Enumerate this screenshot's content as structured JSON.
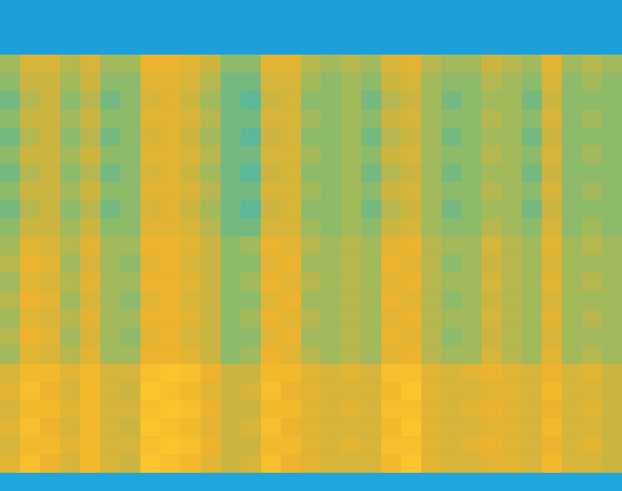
{
  "chart_data": {
    "type": "heatmap",
    "tick_labels": false,
    "color_range": [
      0,
      10
    ],
    "values": [
      [
        1,
        1,
        1,
        1,
        1,
        1,
        1,
        1,
        1,
        1,
        1,
        1,
        1,
        1,
        1,
        1,
        1,
        1,
        1,
        1,
        1,
        1,
        1,
        1,
        1,
        1,
        1,
        1,
        1,
        1,
        1
      ],
      [
        1,
        1,
        1,
        1,
        1,
        1,
        1,
        1,
        1,
        1,
        1,
        1,
        1,
        1,
        1,
        1,
        1,
        1,
        1,
        1,
        1,
        1,
        1,
        1,
        1,
        1,
        1,
        1,
        1,
        1,
        1
      ],
      [
        1,
        1,
        1,
        1,
        1,
        1,
        1,
        1,
        1,
        1,
        1,
        1,
        1,
        1,
        1,
        1,
        1,
        1,
        1,
        1,
        1,
        1,
        1,
        1,
        1,
        1,
        1,
        1,
        1,
        1,
        1
      ],
      [
        5,
        6.5,
        6.5,
        5.5,
        6.5,
        5,
        5,
        7.5,
        7.5,
        7,
        6,
        4.5,
        4.5,
        7,
        7,
        5.5,
        5,
        5.5,
        5,
        6.5,
        7,
        5.5,
        5,
        5,
        6,
        5.5,
        5,
        7,
        5,
        5.5,
        5
      ],
      [
        4.5,
        6,
        6,
        5,
        6,
        4.5,
        4.5,
        7,
        7,
        6.5,
        5.5,
        4,
        4,
        6.5,
        6.5,
        5,
        4.5,
        5,
        4.5,
        6,
        6.5,
        5,
        4.5,
        4.5,
        5.5,
        5,
        4.5,
        6.5,
        4.5,
        5,
        4.5
      ],
      [
        4,
        5.5,
        6,
        4.5,
        5.5,
        4,
        4.5,
        6.5,
        7,
        6,
        5,
        4,
        3.5,
        6,
        6.5,
        4.5,
        4.5,
        5,
        4,
        5.5,
        6,
        5,
        4,
        4.5,
        5,
        5,
        4,
        6,
        4.5,
        4.5,
        4.5
      ],
      [
        4.5,
        6,
        6,
        5,
        6,
        4.5,
        4.5,
        7,
        7,
        6.5,
        5.5,
        4,
        4,
        6.5,
        6.5,
        5,
        4.5,
        5,
        4.5,
        6,
        6.5,
        5,
        4.5,
        4.5,
        5.5,
        5,
        4.5,
        6.5,
        4.5,
        5,
        4.5
      ],
      [
        4,
        5.5,
        6,
        4.5,
        5.5,
        4,
        4.5,
        6.5,
        7,
        6,
        5,
        4,
        3.5,
        6,
        6.5,
        4.5,
        4.5,
        5,
        4,
        5.5,
        6,
        5,
        4,
        4.5,
        5,
        5,
        4,
        6,
        4.5,
        4.5,
        4.5
      ],
      [
        4.5,
        6,
        6,
        5,
        6,
        4.5,
        4.5,
        7,
        7,
        6.5,
        5.5,
        4,
        4,
        6.5,
        6.5,
        5,
        4.5,
        5,
        4.5,
        6,
        6.5,
        5,
        4.5,
        4.5,
        5.5,
        5,
        4.5,
        6.5,
        4.5,
        5,
        4.5
      ],
      [
        4,
        5.5,
        6,
        4.5,
        5.5,
        4,
        4.5,
        6.5,
        7,
        6,
        5,
        4,
        3.5,
        6,
        6.5,
        4.5,
        4.5,
        5,
        4,
        5.5,
        6,
        5,
        4,
        4.5,
        5,
        5,
        4,
        6,
        4.5,
        4.5,
        4.5
      ],
      [
        4.5,
        6,
        6,
        5,
        6,
        4.5,
        4.5,
        7,
        7,
        6.5,
        5.5,
        4,
        4,
        6.5,
        6.5,
        5,
        4.5,
        5,
        4.5,
        6,
        6.5,
        5,
        4.5,
        4.5,
        5.5,
        5,
        4.5,
        6.5,
        4.5,
        5,
        4.5
      ],
      [
        4,
        5.5,
        6,
        4.5,
        5.5,
        4,
        4.5,
        6.5,
        7,
        6,
        5,
        4,
        3.5,
        6,
        6.5,
        4.5,
        4.5,
        5,
        4,
        5.5,
        6,
        5,
        4,
        4.5,
        5,
        5,
        4,
        6,
        4.5,
        4.5,
        4.5
      ],
      [
        4.5,
        6,
        6,
        5,
        6,
        4.5,
        4.5,
        7,
        7,
        6.5,
        5.5,
        4,
        4,
        6.5,
        6.5,
        5,
        4.5,
        5,
        4.5,
        6,
        6.5,
        5,
        4.5,
        4.5,
        5.5,
        5,
        4.5,
        6.5,
        4.5,
        5,
        4.5
      ],
      [
        5,
        7,
        6.5,
        5.5,
        7,
        5,
        5,
        7.5,
        7.5,
        7,
        6,
        4.5,
        5,
        7.5,
        7,
        5.5,
        5,
        5.5,
        5,
        7,
        7.5,
        5.5,
        5,
        5,
        6.5,
        5.5,
        5,
        7,
        5,
        5.5,
        5
      ],
      [
        5.5,
        7.5,
        7,
        5,
        6.5,
        5,
        4.5,
        7,
        7.5,
        6.5,
        6,
        4.5,
        4.5,
        7,
        7.5,
        5,
        5,
        5.5,
        5,
        7.5,
        7,
        5.5,
        4.5,
        5,
        6,
        5.5,
        5,
        6.5,
        5,
        5,
        5
      ],
      [
        5,
        7,
        6.5,
        5.5,
        7,
        5,
        5,
        7.5,
        7.5,
        7,
        6,
        4.5,
        5,
        7.5,
        7,
        5.5,
        5,
        5.5,
        5,
        7,
        7.5,
        5.5,
        5,
        5,
        6.5,
        5.5,
        5,
        7,
        5,
        5.5,
        5
      ],
      [
        5.5,
        7.5,
        7,
        5,
        6.5,
        5,
        4.5,
        7,
        7.5,
        6.5,
        6,
        4.5,
        4.5,
        7,
        7.5,
        5,
        5,
        5.5,
        5,
        7.5,
        7,
        5.5,
        4.5,
        5,
        6,
        5.5,
        5,
        6.5,
        5,
        5,
        5
      ],
      [
        5,
        7,
        6.5,
        5.5,
        7,
        5,
        5,
        7.5,
        7.5,
        7,
        6,
        4.5,
        5,
        7.5,
        7,
        5.5,
        5,
        5.5,
        5,
        7,
        7.5,
        5.5,
        5,
        5,
        6.5,
        5.5,
        5,
        7,
        5,
        5.5,
        5
      ],
      [
        5.5,
        7.5,
        7,
        5,
        6.5,
        5,
        4.5,
        7,
        7.5,
        6.5,
        6,
        4.5,
        4.5,
        7,
        7.5,
        5,
        5,
        5.5,
        5,
        7.5,
        7,
        5.5,
        4.5,
        5,
        6,
        5.5,
        5,
        6.5,
        5,
        5,
        5
      ],
      [
        5,
        7,
        6.5,
        5.5,
        7,
        5,
        5,
        7.5,
        7.5,
        7,
        6,
        4.5,
        5,
        7.5,
        7,
        5.5,
        5,
        5.5,
        5,
        7,
        7.5,
        5.5,
        5,
        5,
        6.5,
        5.5,
        5,
        7,
        5,
        5.5,
        5
      ],
      [
        6.5,
        8,
        8,
        7,
        8,
        6.5,
        6.5,
        8.5,
        9,
        8.5,
        7.5,
        6,
        6,
        8,
        8,
        7,
        6.5,
        7,
        6.5,
        8.5,
        8.5,
        7,
        6.5,
        7,
        7.5,
        7,
        6.5,
        7.5,
        6.5,
        7,
        6
      ],
      [
        7,
        8.5,
        7.5,
        6.5,
        8,
        6.5,
        6,
        9,
        8.5,
        8,
        7,
        6,
        6.5,
        8.5,
        7.5,
        7,
        6.5,
        6.5,
        6.5,
        8,
        9,
        7,
        6.5,
        6.5,
        7,
        7,
        6.5,
        8,
        6.5,
        6.5,
        6
      ],
      [
        6.5,
        8,
        8,
        7,
        8,
        6.5,
        6.5,
        8.5,
        9,
        8.5,
        7.5,
        6,
        6,
        8,
        8,
        7,
        6.5,
        7,
        6.5,
        8.5,
        8.5,
        7,
        6.5,
        7,
        7.5,
        7,
        6.5,
        7.5,
        6.5,
        7,
        6
      ],
      [
        7,
        8.5,
        7.5,
        6.5,
        8,
        6.5,
        6,
        9,
        8.5,
        8,
        7,
        6,
        6.5,
        8.5,
        7.5,
        7,
        6.5,
        6.5,
        6.5,
        8,
        9,
        7,
        6.5,
        6.5,
        7,
        7,
        6.5,
        8,
        6.5,
        6.5,
        6
      ],
      [
        6.5,
        8,
        8,
        7,
        8,
        6.5,
        6.5,
        8.5,
        9,
        8.5,
        7.5,
        6,
        6,
        8,
        8,
        7,
        6.5,
        7,
        6.5,
        8.5,
        8.5,
        7,
        6.5,
        7,
        7.5,
        7,
        6.5,
        7.5,
        6.5,
        7,
        6
      ],
      [
        7,
        8.5,
        7.5,
        6.5,
        8,
        6.5,
        6,
        9,
        8.5,
        8,
        7,
        6,
        6.5,
        8.5,
        7.5,
        7,
        6.5,
        6.5,
        6.5,
        8,
        9,
        7,
        6.5,
        6.5,
        7,
        7,
        6.5,
        8,
        6.5,
        6.5,
        6
      ],
      [
        1.5,
        1.5,
        1.5,
        1.5,
        1.5,
        1.5,
        1.5,
        1.5,
        1.5,
        1.5,
        1.5,
        1.5,
        1.5,
        1.5,
        1.5,
        1.5,
        1.5,
        1.5,
        1.5,
        1.5,
        1.5,
        1.5,
        1.5,
        1.5,
        1.5,
        1.5,
        1.5,
        1.5,
        1.5,
        1.5,
        1.5
      ]
    ]
  }
}
